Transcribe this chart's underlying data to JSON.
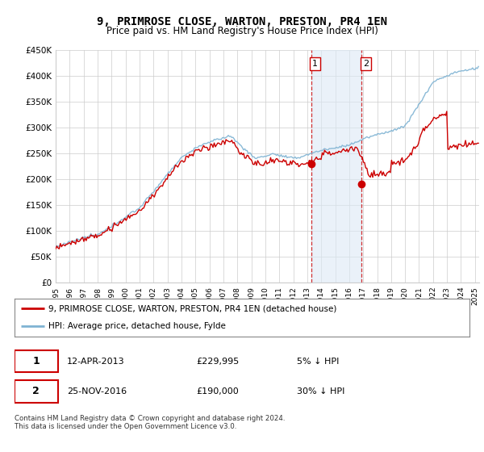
{
  "title": "9, PRIMROSE CLOSE, WARTON, PRESTON, PR4 1EN",
  "subtitle": "Price paid vs. HM Land Registry's House Price Index (HPI)",
  "legend_line1": "9, PRIMROSE CLOSE, WARTON, PRESTON, PR4 1EN (detached house)",
  "legend_line2": "HPI: Average price, detached house, Fylde",
  "annotation1_label": "1",
  "annotation1_date": "12-APR-2013",
  "annotation1_price": "£229,995",
  "annotation1_note": "5% ↓ HPI",
  "annotation2_label": "2",
  "annotation2_date": "25-NOV-2016",
  "annotation2_price": "£190,000",
  "annotation2_note": "30% ↓ HPI",
  "footer": "Contains HM Land Registry data © Crown copyright and database right 2024.\nThis data is licensed under the Open Government Licence v3.0.",
  "house_color": "#cc0000",
  "hpi_color": "#7fb3d3",
  "hpi_fill_color": "#dce9f5",
  "annotation_box_color": "#cc0000",
  "shaded_region_color": "#dce9f5",
  "ylim_min": 0,
  "ylim_max": 450000,
  "yticks": [
    0,
    50000,
    100000,
    150000,
    200000,
    250000,
    300000,
    350000,
    400000,
    450000
  ],
  "ytick_labels": [
    "£0",
    "£50K",
    "£100K",
    "£150K",
    "£200K",
    "£250K",
    "£300K",
    "£350K",
    "£400K",
    "£450K"
  ],
  "background_color": "#ffffff",
  "grid_color": "#cccccc",
  "sale1_x": 2013.28,
  "sale1_y": 229995,
  "sale2_x": 2016.9,
  "sale2_y": 190000,
  "shade_x1": 2013.28,
  "shade_x2": 2016.9,
  "xmin": 1995,
  "xmax": 2025.3
}
